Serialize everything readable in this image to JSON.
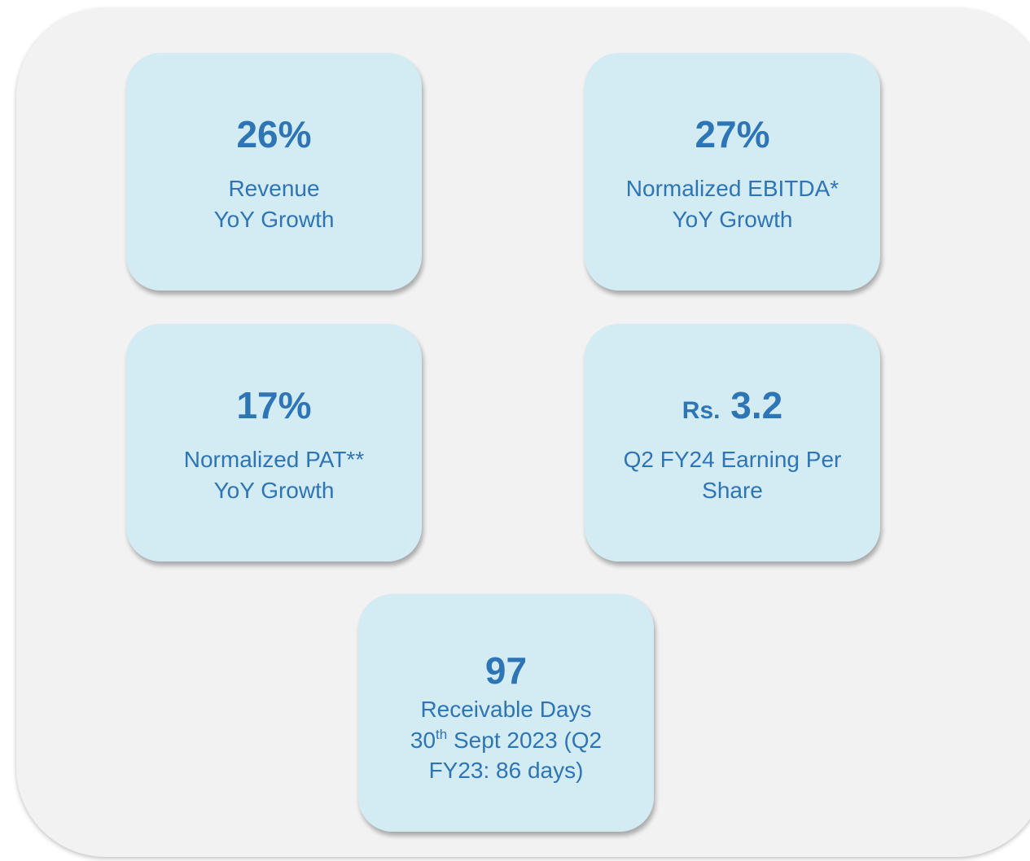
{
  "cards": [
    {
      "value": "26%",
      "lines": [
        "Revenue",
        "YoY Growth"
      ]
    },
    {
      "value": "27%",
      "lines": [
        "Normalized EBITDA*",
        "YoY Growth"
      ]
    },
    {
      "value": "17%",
      "lines": [
        "Normalized PAT**",
        "YoY Growth"
      ]
    },
    {
      "prefix": "Rs.",
      "value": "3.2",
      "lines": [
        "Q2 FY24 Earning Per",
        "Share"
      ]
    },
    {
      "value": "97",
      "lines": [
        "Receivable Days"
      ],
      "date_day": "30",
      "date_ordinal": "th",
      "date_rest": " Sept 2023 (Q2",
      "date_cont": "FY23: 86 days)"
    }
  ]
}
